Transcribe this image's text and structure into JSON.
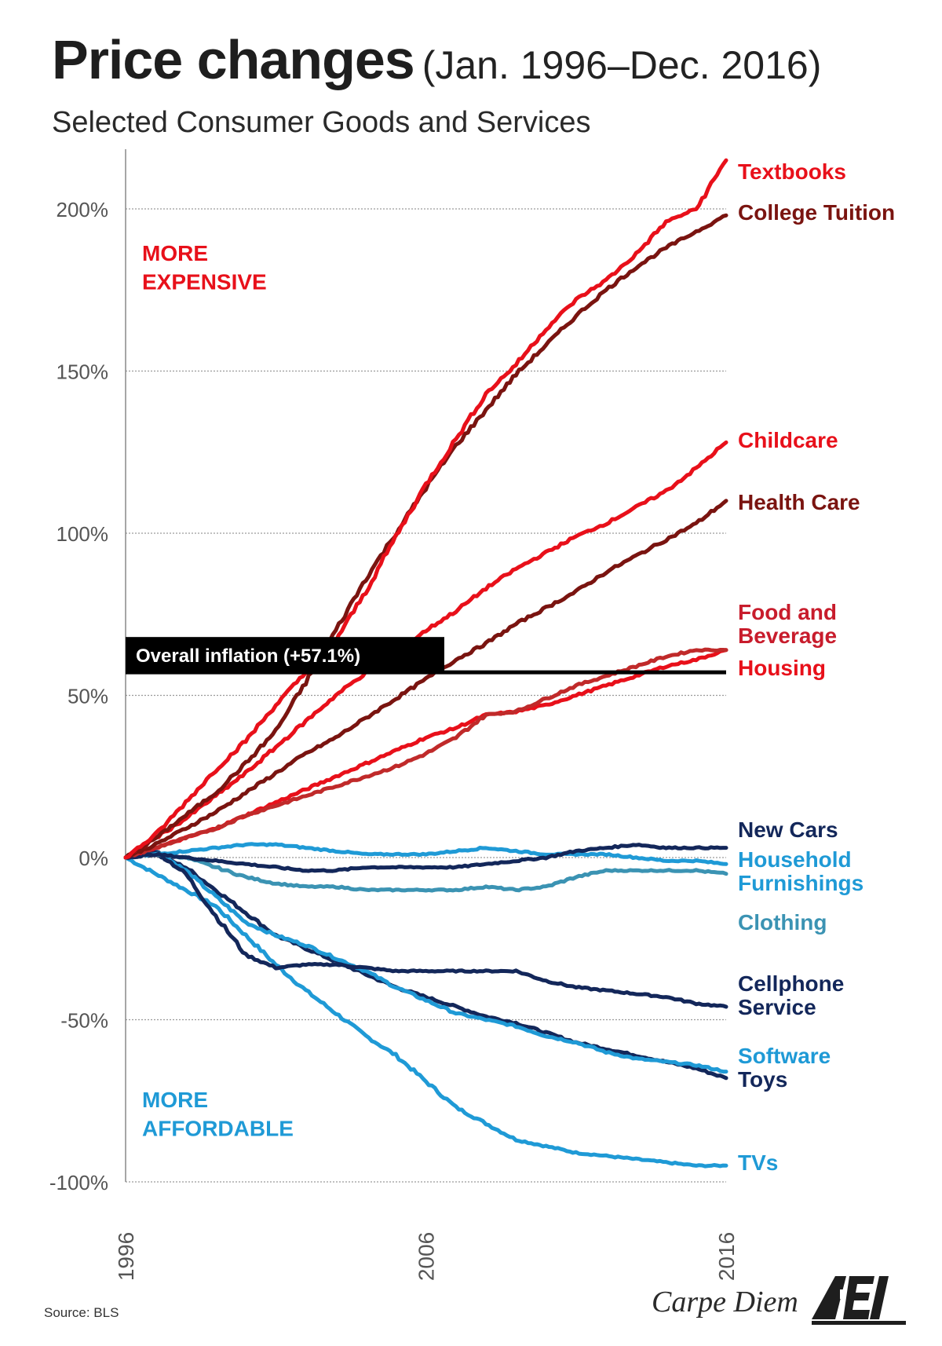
{
  "header": {
    "title": "Price changes",
    "title_range": "(Jan. 1996–Dec. 2016)",
    "subtitle": "Selected Consumer Goods and Services"
  },
  "footer": {
    "source": "Source:  BLS",
    "brand": "Carpe Diem",
    "logo_text": "AEI"
  },
  "chart_data": {
    "type": "line",
    "title": "Price changes (Jan. 1996–Dec. 2016)",
    "subtitle": "Selected Consumer Goods and Services",
    "x_ticks": [
      1996,
      2006,
      2016
    ],
    "xlim": [
      1996,
      2016
    ],
    "ylim": [
      -100,
      220
    ],
    "y_ticks": [
      {
        "value": 200,
        "label": "200%"
      },
      {
        "value": 150,
        "label": "150%"
      },
      {
        "value": 100,
        "label": "100%"
      },
      {
        "value": 50,
        "label": "50%"
      },
      {
        "value": 0,
        "label": "0%"
      },
      {
        "value": -50,
        "label": "-50%"
      },
      {
        "value": -100,
        "label": "-100%"
      }
    ],
    "grid": "horizontal dotted",
    "annotations": {
      "more_expensive": "MORE\nEXPENSIVE",
      "more_affordable": "MORE\nAFFORDABLE",
      "overall_inflation_label": "Overall inflation (+57.1%)",
      "overall_inflation_value": 57.1
    },
    "colors": {
      "bright_red": "#e8101a",
      "dark_red": "#7a1410",
      "mid_red": "#c02a2a",
      "navy": "#13275a",
      "blue": "#1f9ad6",
      "teal": "#3b93b3"
    },
    "series": [
      {
        "name": "Textbooks",
        "color": "#e8101a",
        "label_color": "#e8101a",
        "end": 215.0,
        "points": [
          [
            1996,
            0
          ],
          [
            1997,
            7
          ],
          [
            1998,
            17
          ],
          [
            1999,
            27
          ],
          [
            2000,
            36
          ],
          [
            2001,
            47
          ],
          [
            2002,
            57
          ],
          [
            2003,
            67
          ],
          [
            2004,
            82
          ],
          [
            2005,
            99
          ],
          [
            2006,
            115
          ],
          [
            2007,
            129
          ],
          [
            2008,
            143
          ],
          [
            2009,
            152
          ],
          [
            2010,
            163
          ],
          [
            2011,
            172
          ],
          [
            2012,
            178
          ],
          [
            2013,
            186
          ],
          [
            2014,
            196
          ],
          [
            2015,
            200
          ],
          [
            2016,
            215
          ]
        ]
      },
      {
        "name": "College Tuition",
        "color": "#7a1410",
        "label_color": "#7a1410",
        "end": 198.0,
        "points": [
          [
            1996,
            0
          ],
          [
            1997,
            6
          ],
          [
            1998,
            13
          ],
          [
            1999,
            20
          ],
          [
            2000,
            29
          ],
          [
            2001,
            39
          ],
          [
            2002,
            54
          ],
          [
            2003,
            70
          ],
          [
            2004,
            86
          ],
          [
            2005,
            100
          ],
          [
            2006,
            114
          ],
          [
            2007,
            127
          ],
          [
            2008,
            138
          ],
          [
            2009,
            149
          ],
          [
            2010,
            158
          ],
          [
            2011,
            167
          ],
          [
            2012,
            175
          ],
          [
            2013,
            182
          ],
          [
            2014,
            188
          ],
          [
            2015,
            193
          ],
          [
            2016,
            198
          ]
        ]
      },
      {
        "name": "Childcare",
        "color": "#e8101a",
        "label_color": "#e8101a",
        "end": 128.0,
        "points": [
          [
            1996,
            0
          ],
          [
            1997,
            6
          ],
          [
            1998,
            12
          ],
          [
            1999,
            19
          ],
          [
            2000,
            26
          ],
          [
            2001,
            34
          ],
          [
            2002,
            42
          ],
          [
            2003,
            50
          ],
          [
            2004,
            57
          ],
          [
            2005,
            63
          ],
          [
            2006,
            70
          ],
          [
            2007,
            76
          ],
          [
            2008,
            83
          ],
          [
            2009,
            89
          ],
          [
            2010,
            94
          ],
          [
            2011,
            99
          ],
          [
            2012,
            103
          ],
          [
            2013,
            108
          ],
          [
            2014,
            113
          ],
          [
            2015,
            120
          ],
          [
            2016,
            128
          ]
        ]
      },
      {
        "name": "Health Care",
        "color": "#7a1410",
        "label_color": "#7a1410",
        "end": 110.0,
        "points": [
          [
            1996,
            0
          ],
          [
            1997,
            4
          ],
          [
            1998,
            9
          ],
          [
            1999,
            14
          ],
          [
            2000,
            20
          ],
          [
            2001,
            26
          ],
          [
            2002,
            32
          ],
          [
            2003,
            37
          ],
          [
            2004,
            43
          ],
          [
            2005,
            49
          ],
          [
            2006,
            55
          ],
          [
            2007,
            61
          ],
          [
            2008,
            66
          ],
          [
            2009,
            72
          ],
          [
            2010,
            77
          ],
          [
            2011,
            82
          ],
          [
            2012,
            88
          ],
          [
            2013,
            93
          ],
          [
            2014,
            98
          ],
          [
            2015,
            103
          ],
          [
            2016,
            110
          ]
        ]
      },
      {
        "name": "Food and\nBeverage",
        "color": "#c02a2a",
        "label_color": "#c81c2c",
        "end": 64.0,
        "points": [
          [
            1996,
            0
          ],
          [
            1997,
            3
          ],
          [
            1998,
            6
          ],
          [
            1999,
            9
          ],
          [
            2000,
            13
          ],
          [
            2001,
            16
          ],
          [
            2002,
            19
          ],
          [
            2003,
            22
          ],
          [
            2004,
            25
          ],
          [
            2005,
            28
          ],
          [
            2006,
            32
          ],
          [
            2007,
            37
          ],
          [
            2008,
            44
          ],
          [
            2009,
            45
          ],
          [
            2010,
            49
          ],
          [
            2011,
            53
          ],
          [
            2012,
            56
          ],
          [
            2013,
            59
          ],
          [
            2014,
            62
          ],
          [
            2015,
            64
          ],
          [
            2016,
            64
          ]
        ]
      },
      {
        "name": "Housing",
        "color": "#e8101a",
        "label_color": "#e8101a",
        "end": 64.0,
        "points": [
          [
            1996,
            0
          ],
          [
            1997,
            3
          ],
          [
            1998,
            6
          ],
          [
            1999,
            9
          ],
          [
            2000,
            13
          ],
          [
            2001,
            17
          ],
          [
            2002,
            21
          ],
          [
            2003,
            25
          ],
          [
            2004,
            29
          ],
          [
            2005,
            33
          ],
          [
            2006,
            37
          ],
          [
            2007,
            40
          ],
          [
            2008,
            44
          ],
          [
            2009,
            45
          ],
          [
            2010,
            47
          ],
          [
            2011,
            50
          ],
          [
            2012,
            53
          ],
          [
            2013,
            56
          ],
          [
            2014,
            59
          ],
          [
            2015,
            61
          ],
          [
            2016,
            64
          ]
        ]
      },
      {
        "name": "New Cars",
        "color": "#13275a",
        "label_color": "#13275a",
        "end": 3.0,
        "points": [
          [
            1996,
            0
          ],
          [
            1997,
            1
          ],
          [
            1998,
            0
          ],
          [
            1999,
            -1
          ],
          [
            2000,
            -2
          ],
          [
            2001,
            -3
          ],
          [
            2002,
            -4
          ],
          [
            2003,
            -4
          ],
          [
            2004,
            -3
          ],
          [
            2005,
            -3
          ],
          [
            2006,
            -3
          ],
          [
            2007,
            -3
          ],
          [
            2008,
            -2
          ],
          [
            2009,
            -1
          ],
          [
            2010,
            0
          ],
          [
            2011,
            2
          ],
          [
            2012,
            3
          ],
          [
            2013,
            4
          ],
          [
            2014,
            3
          ],
          [
            2015,
            3
          ],
          [
            2016,
            3
          ]
        ]
      },
      {
        "name": "Household\nFurnishings",
        "color": "#1f9ad6",
        "label_color": "#1f9ad6",
        "end": -2.0,
        "points": [
          [
            1996,
            0
          ],
          [
            1997,
            1
          ],
          [
            1998,
            2
          ],
          [
            1999,
            3
          ],
          [
            2000,
            4
          ],
          [
            2001,
            4
          ],
          [
            2002,
            3
          ],
          [
            2003,
            2
          ],
          [
            2004,
            1
          ],
          [
            2005,
            1
          ],
          [
            2006,
            1
          ],
          [
            2007,
            2
          ],
          [
            2008,
            3
          ],
          [
            2009,
            2
          ],
          [
            2010,
            1
          ],
          [
            2011,
            1
          ],
          [
            2012,
            1
          ],
          [
            2013,
            0
          ],
          [
            2014,
            -1
          ],
          [
            2015,
            -1
          ],
          [
            2016,
            -2
          ]
        ]
      },
      {
        "name": "Clothing",
        "color": "#3b93b3",
        "label_color": "#3b93b3",
        "end": -5.0,
        "points": [
          [
            1996,
            0
          ],
          [
            1997,
            1
          ],
          [
            1998,
            0
          ],
          [
            1999,
            -3
          ],
          [
            2000,
            -6
          ],
          [
            2001,
            -8
          ],
          [
            2002,
            -9
          ],
          [
            2003,
            -9
          ],
          [
            2004,
            -10
          ],
          [
            2005,
            -10
          ],
          [
            2006,
            -10
          ],
          [
            2007,
            -10
          ],
          [
            2008,
            -9
          ],
          [
            2009,
            -10
          ],
          [
            2010,
            -9
          ],
          [
            2011,
            -6
          ],
          [
            2012,
            -4
          ],
          [
            2013,
            -4
          ],
          [
            2014,
            -4
          ],
          [
            2015,
            -4
          ],
          [
            2016,
            -5
          ]
        ]
      },
      {
        "name": "Cellphone\nService",
        "color": "#13275a",
        "label_color": "#13275a",
        "end": -46.0,
        "points": [
          [
            1996,
            0
          ],
          [
            1997,
            2
          ],
          [
            1998,
            -5
          ],
          [
            1999,
            -18
          ],
          [
            2000,
            -30
          ],
          [
            2001,
            -34
          ],
          [
            2002,
            -33
          ],
          [
            2003,
            -33
          ],
          [
            2004,
            -34
          ],
          [
            2005,
            -35
          ],
          [
            2006,
            -35
          ],
          [
            2007,
            -35
          ],
          [
            2008,
            -35
          ],
          [
            2009,
            -35
          ],
          [
            2010,
            -38
          ],
          [
            2011,
            -40
          ],
          [
            2012,
            -41
          ],
          [
            2013,
            -42
          ],
          [
            2014,
            -43
          ],
          [
            2015,
            -45
          ],
          [
            2016,
            -46
          ]
        ]
      },
      {
        "name": "Software",
        "color": "#1f9ad6",
        "label_color": "#1f9ad6",
        "end": -66.0,
        "points": [
          [
            1996,
            0
          ],
          [
            1997,
            2
          ],
          [
            1998,
            -4
          ],
          [
            1999,
            -12
          ],
          [
            2000,
            -20
          ],
          [
            2001,
            -24
          ],
          [
            2002,
            -27
          ],
          [
            2003,
            -31
          ],
          [
            2004,
            -35
          ],
          [
            2005,
            -40
          ],
          [
            2006,
            -44
          ],
          [
            2007,
            -48
          ],
          [
            2008,
            -50
          ],
          [
            2009,
            -52
          ],
          [
            2010,
            -55
          ],
          [
            2011,
            -57
          ],
          [
            2012,
            -60
          ],
          [
            2013,
            -62
          ],
          [
            2014,
            -63
          ],
          [
            2015,
            -64
          ],
          [
            2016,
            -66
          ]
        ]
      },
      {
        "name": "Toys",
        "color": "#13275a",
        "label_color": "#13275a",
        "end": -68.0,
        "points": [
          [
            1996,
            0
          ],
          [
            1997,
            1
          ],
          [
            1998,
            -3
          ],
          [
            1999,
            -10
          ],
          [
            2000,
            -17
          ],
          [
            2001,
            -24
          ],
          [
            2002,
            -28
          ],
          [
            2003,
            -32
          ],
          [
            2004,
            -36
          ],
          [
            2005,
            -40
          ],
          [
            2006,
            -43
          ],
          [
            2007,
            -46
          ],
          [
            2008,
            -49
          ],
          [
            2009,
            -51
          ],
          [
            2010,
            -54
          ],
          [
            2011,
            -57
          ],
          [
            2012,
            -59
          ],
          [
            2013,
            -61
          ],
          [
            2014,
            -63
          ],
          [
            2015,
            -65
          ],
          [
            2016,
            -68
          ]
        ]
      },
      {
        "name": "TVs",
        "color": "#1f9ad6",
        "label_color": "#1f9ad6",
        "end": -95.0,
        "points": [
          [
            1996,
            0
          ],
          [
            1997,
            -5
          ],
          [
            1998,
            -10
          ],
          [
            1999,
            -15
          ],
          [
            2000,
            -24
          ],
          [
            2001,
            -33
          ],
          [
            2002,
            -41
          ],
          [
            2003,
            -48
          ],
          [
            2004,
            -55
          ],
          [
            2005,
            -61
          ],
          [
            2006,
            -69
          ],
          [
            2007,
            -77
          ],
          [
            2008,
            -82
          ],
          [
            2009,
            -87
          ],
          [
            2010,
            -89
          ],
          [
            2011,
            -91
          ],
          [
            2012,
            -92
          ],
          [
            2013,
            -93
          ],
          [
            2014,
            -94
          ],
          [
            2015,
            -95
          ],
          [
            2016,
            -95
          ]
        ]
      }
    ]
  }
}
